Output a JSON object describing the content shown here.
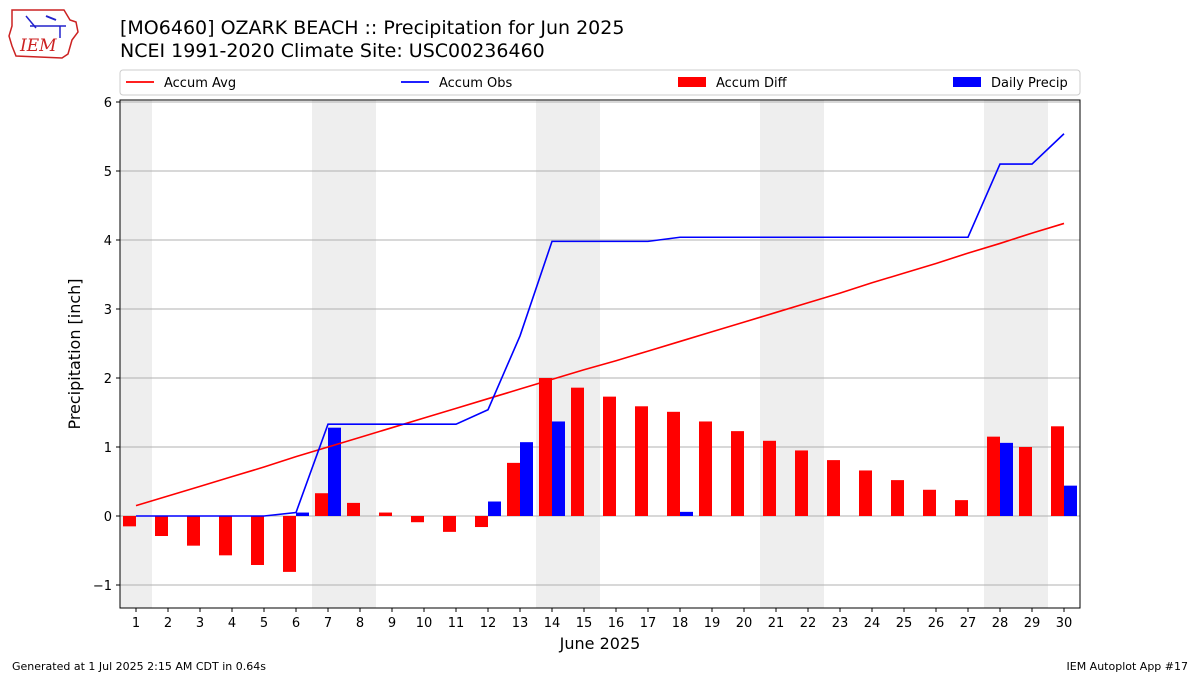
{
  "header": {
    "title_line1": "[MO6460] OZARK BEACH :: Precipitation for Jun 2025",
    "title_line2": "NCEI 1991-2020 Climate Site: USC00236460",
    "logo_text": "IEM"
  },
  "footer": {
    "generated": "Generated at 1 Jul 2025 2:15 AM CDT in 0.64s",
    "app": "IEM Autoplot App #17"
  },
  "colors": {
    "avg": "#ff0000",
    "obs": "#0000ff",
    "diff": "#ff0000",
    "daily": "#0000ff",
    "weekend": "#eeeeee",
    "grid": "#b0b0b0"
  },
  "chart_data": {
    "type": "bar",
    "xlabel": "June 2025",
    "ylabel": "Precipitation [inch]",
    "ylim": [
      -1.33,
      6.03
    ],
    "yticks": [
      -1,
      0,
      1,
      2,
      3,
      4,
      5,
      6
    ],
    "ytick_labels": [
      "−1",
      "0",
      "1",
      "2",
      "3",
      "4",
      "5",
      "6"
    ],
    "x": [
      1,
      2,
      3,
      4,
      5,
      6,
      7,
      8,
      9,
      10,
      11,
      12,
      13,
      14,
      15,
      16,
      17,
      18,
      19,
      20,
      21,
      22,
      23,
      24,
      25,
      26,
      27,
      28,
      29,
      30
    ],
    "weekend_days": [
      1,
      7,
      8,
      14,
      15,
      21,
      22,
      28,
      29
    ],
    "grid": true,
    "legend_position": "top",
    "series": [
      {
        "name": "Accum Avg",
        "kind": "line",
        "values": [
          0.15,
          0.29,
          0.43,
          0.57,
          0.71,
          0.86,
          1.0,
          1.14,
          1.28,
          1.42,
          1.56,
          1.7,
          1.84,
          1.98,
          2.12,
          2.25,
          2.39,
          2.53,
          2.67,
          2.81,
          2.95,
          3.09,
          3.23,
          3.38,
          3.52,
          3.66,
          3.81,
          3.95,
          4.1,
          4.24
        ]
      },
      {
        "name": "Accum Obs",
        "kind": "line",
        "values": [
          0,
          0,
          0,
          0,
          0,
          0.05,
          1.33,
          1.33,
          1.33,
          1.33,
          1.33,
          1.54,
          2.61,
          3.98,
          3.98,
          3.98,
          3.98,
          4.04,
          4.04,
          4.04,
          4.04,
          4.04,
          4.04,
          4.04,
          4.04,
          4.04,
          4.04,
          5.1,
          5.1,
          5.54
        ]
      },
      {
        "name": "Accum Diff",
        "kind": "bar",
        "values": [
          -0.15,
          -0.29,
          -0.43,
          -0.57,
          -0.71,
          -0.81,
          0.33,
          0.19,
          0.05,
          -0.09,
          -0.23,
          -0.16,
          0.77,
          2.0,
          1.86,
          1.73,
          1.59,
          1.51,
          1.37,
          1.23,
          1.09,
          0.95,
          0.81,
          0.66,
          0.52,
          0.38,
          0.23,
          1.15,
          1.0,
          1.3
        ]
      },
      {
        "name": "Daily Precip",
        "kind": "bar",
        "values": [
          0,
          0,
          0,
          0,
          0,
          0.05,
          1.28,
          0,
          0,
          0,
          0,
          0.21,
          1.07,
          1.37,
          0,
          0,
          0,
          0.06,
          0,
          0,
          0,
          0,
          0,
          0,
          0,
          0,
          0,
          1.06,
          0,
          0.44
        ]
      }
    ]
  }
}
